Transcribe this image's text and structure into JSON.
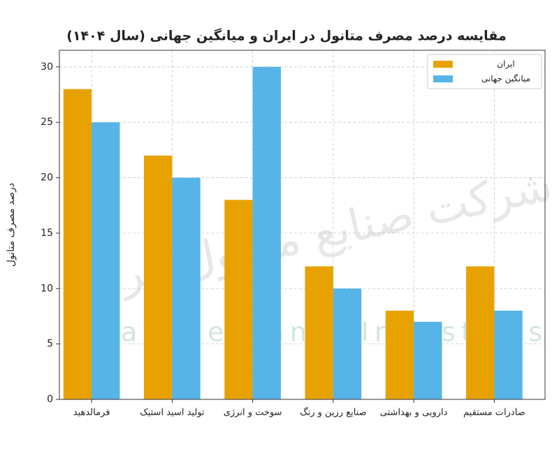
{
  "chart_data": {
    "type": "bar",
    "title": "مقایسه درصد مصرف متانول در ایران و میانگین جهانی (سال ۱۴۰۴)",
    "y_label": "درصد مصرف متانول",
    "watermark": "Iran Methanol Industries Co",
    "watermark_fa": "شرکت صنایع متانول ایران",
    "categories": [
      "فرمالدهید",
      "تولید اسید استیک",
      "سوخت و انرژی",
      "صنایع رزین و رنگ",
      "دارویی و بهداشتی",
      "صادرات مستقیم"
    ],
    "series": [
      {
        "name": "ایران",
        "color": "#e8a200",
        "values": [
          28,
          22,
          18,
          12,
          8,
          12
        ]
      },
      {
        "name": "میانگین جهانی",
        "color": "#56b4e9",
        "values": [
          25,
          20,
          30,
          10,
          7,
          8
        ]
      }
    ],
    "ylim": [
      0,
      31.5
    ],
    "yticks": [
      0,
      5,
      10,
      15,
      20,
      25,
      30
    ],
    "grid": true,
    "legend": "upper right"
  }
}
